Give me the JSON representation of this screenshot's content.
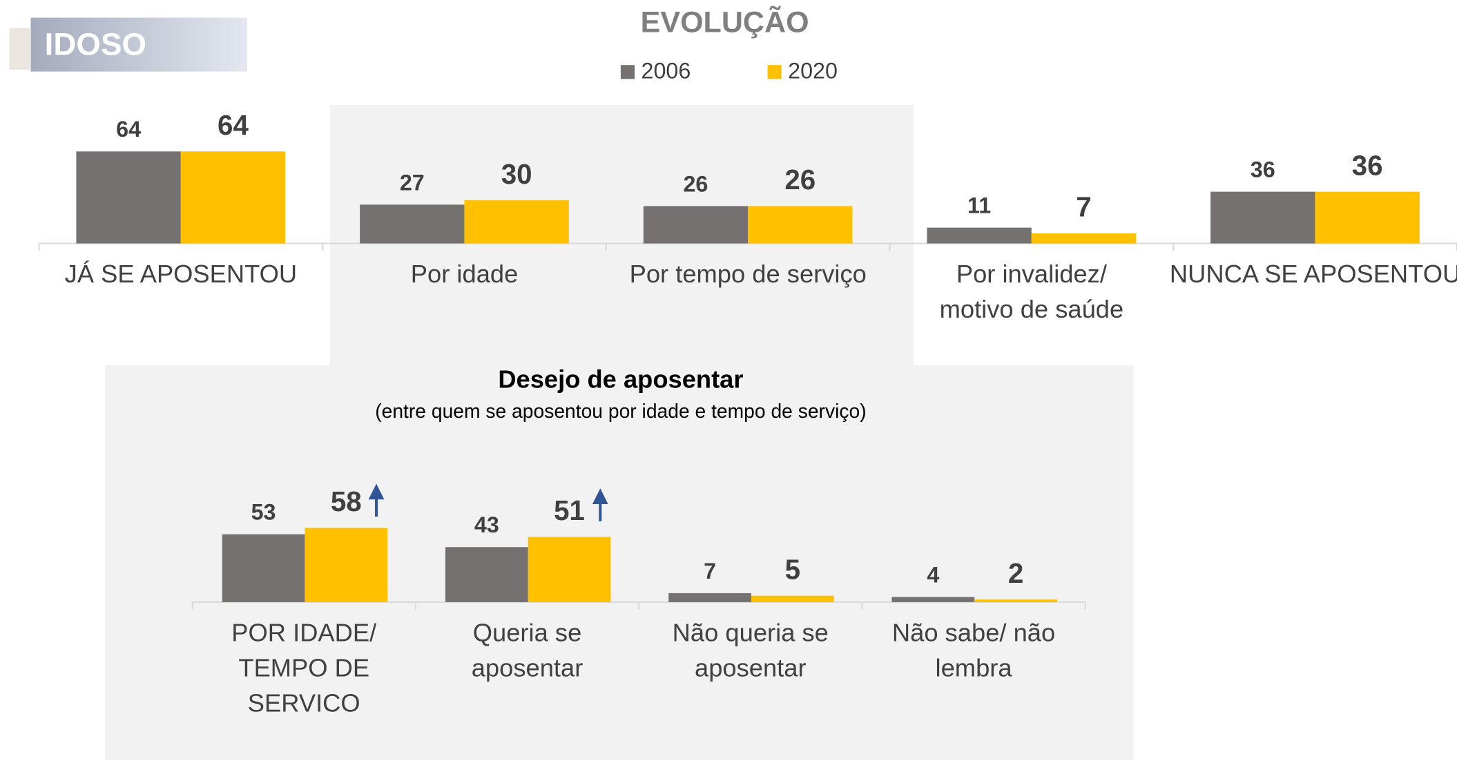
{
  "badge": "IDOSO",
  "title": "EVOLUÇÃO",
  "chart_data": [
    {
      "type": "bar",
      "categories": [
        "JÁ SE APOSENTOU",
        "Por idade",
        "Por tempo de serviço",
        "Por invalidez/\nmotivo de saúde",
        "NUNCA SE APOSENTOU"
      ],
      "series": [
        {
          "name": "2006",
          "color": "#767171",
          "values": [
            64,
            27,
            26,
            11,
            36
          ]
        },
        {
          "name": "2020",
          "color": "#ffc000",
          "values": [
            64,
            30,
            26,
            7,
            36
          ]
        }
      ],
      "ylim": [
        0,
        100
      ]
    },
    {
      "type": "bar",
      "title": "Desejo de aposentar",
      "subtitle": "(entre quem se aposentou por idade e tempo de serviço)",
      "categories": [
        "POR IDADE/\nTEMPO DE\nSERVICO",
        "Queria se\naposentar",
        "Não queria se\naposentar",
        "Não sabe/ não\nlembra"
      ],
      "series": [
        {
          "color": "#767171",
          "values": [
            53,
            43,
            7,
            4
          ]
        },
        {
          "color": "#ffc000",
          "values": [
            58,
            51,
            5,
            2
          ]
        }
      ],
      "ylim": [
        0,
        100
      ]
    }
  ]
}
